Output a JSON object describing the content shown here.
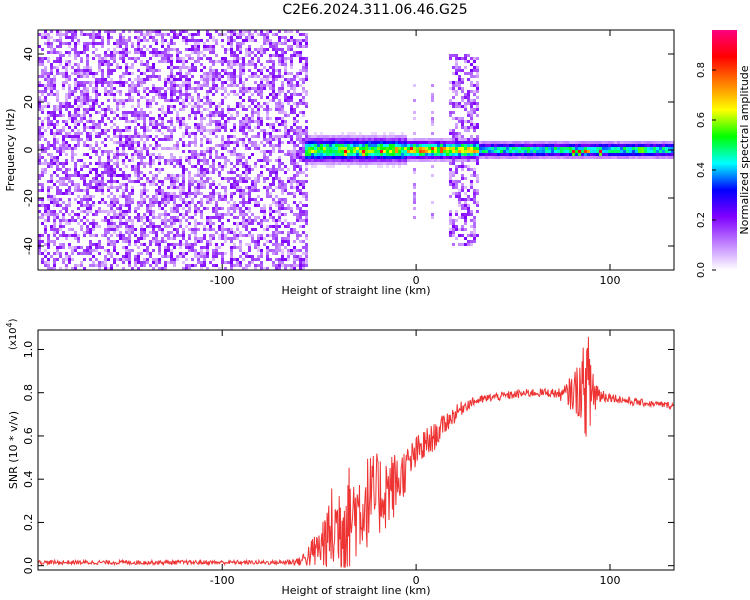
{
  "figure": {
    "title": "C2E6.2024.311.06.46.G25"
  },
  "chart_data": [
    {
      "type": "heatmap",
      "title": "C2E6.2024.311.06.46.G25",
      "xlabel": "Height of straight line (km)",
      "ylabel": "Frequency (Hz)",
      "xlim": [
        -195,
        133
      ],
      "ylim": [
        -50,
        50
      ],
      "x_ticks": [
        -100,
        0,
        100
      ],
      "x_tick_labels": [
        "-100",
        "0",
        "100"
      ],
      "y_ticks": [
        -40,
        -20,
        0,
        20,
        40
      ],
      "y_tick_labels": [
        "-40",
        "-20",
        "0",
        "20",
        "40"
      ],
      "colorbar": {
        "label": "Normalized spectral amplitude",
        "range": [
          0,
          0.96
        ],
        "ticks": [
          0,
          0.2,
          0.4,
          0.6,
          0.8
        ],
        "tick_labels": [
          "0.0",
          "0.2",
          "0.4",
          "0.6",
          "0.8"
        ],
        "colormap": [
          "#ffffff",
          "#c080ff",
          "#8000ff",
          "#0000ff",
          "#00ffff",
          "#00ff00",
          "#ffff00",
          "#ff8000",
          "#ff0000",
          "#ff0080"
        ]
      },
      "regions": [
        {
          "x": [
            -195,
            -55
          ],
          "freq": [
            -50,
            50
          ],
          "amplitude": 0.12,
          "pattern": "noise"
        },
        {
          "x": [
            -58,
            -5
          ],
          "freq": [
            -4,
            4
          ],
          "amplitude": 0.6,
          "pattern": "band"
        },
        {
          "x": [
            -5,
            32
          ],
          "freq": [
            -3,
            3
          ],
          "amplitude": 0.7,
          "pattern": "band"
        },
        {
          "x": [
            -2,
            0
          ],
          "freq": [
            -30,
            30
          ],
          "amplitude": 0.05,
          "pattern": "streak"
        },
        {
          "x": [
            7,
            9
          ],
          "freq": [
            -30,
            30
          ],
          "amplitude": 0.05,
          "pattern": "streak"
        },
        {
          "x": [
            17,
            32
          ],
          "freq": [
            -40,
            40
          ],
          "amplitude": 0.12,
          "pattern": "noise"
        },
        {
          "x": [
            33,
            133
          ],
          "freq": [
            -2.5,
            2.5
          ],
          "amplitude": 0.5,
          "pattern": "band"
        }
      ],
      "peaks": [
        {
          "x": -36,
          "freq": -1,
          "amplitude": 0.95
        },
        {
          "x": -27,
          "freq": -1,
          "amplitude": 0.95
        },
        {
          "x": -18,
          "freq": -0.5,
          "amplitude": 0.9
        },
        {
          "x": -10,
          "freq": 0,
          "amplitude": 0.85
        },
        {
          "x": -2,
          "freq": 0.3,
          "amplitude": 0.96
        },
        {
          "x": 3,
          "freq": -0.8,
          "amplitude": 0.95
        },
        {
          "x": 9,
          "freq": 0.5,
          "amplitude": 0.9
        },
        {
          "x": 13,
          "freq": 0,
          "amplitude": 0.92
        },
        {
          "x": 81,
          "freq": -0.8,
          "amplitude": 0.9
        },
        {
          "x": 84,
          "freq": -0.8,
          "amplitude": 0.9
        },
        {
          "x": 88,
          "freq": -0.5,
          "amplitude": 0.92
        },
        {
          "x": 95,
          "freq": -0.8,
          "amplitude": 0.9
        },
        {
          "x": 116,
          "freq": 0,
          "amplitude": 0.8
        }
      ]
    },
    {
      "type": "line",
      "xlabel": "Height of straight line (km)",
      "ylabel": "SNR (10 * v/v)",
      "y_multiplier": "(x10",
      "y_multiplier_exponent": "4",
      "y_multiplier_close": ")",
      "xlim": [
        -195,
        133
      ],
      "ylim": [
        -0.02,
        1.09
      ],
      "x_ticks": [
        -100,
        0,
        100
      ],
      "x_tick_labels": [
        "-100",
        "0",
        "100"
      ],
      "y_ticks": [
        0,
        0.2,
        0.4,
        0.6,
        0.8,
        1.0
      ],
      "y_tick_labels": [
        "0.0",
        "0.2",
        "0.4",
        "0.6",
        "0.8",
        "1.0"
      ],
      "color": "#ee3333",
      "series": [
        {
          "x": [
            -195,
            -150,
            -100,
            -70,
            -60,
            -50,
            -45,
            -40,
            -35,
            -30,
            -25,
            -20,
            -15,
            -10,
            -5,
            0,
            5,
            10,
            15,
            20,
            25,
            30,
            35,
            40,
            50,
            60,
            70,
            75,
            80,
            85,
            88,
            90,
            92,
            95,
            100,
            110,
            120,
            133
          ],
          "y": [
            0.015,
            0.015,
            0.015,
            0.015,
            0.02,
            0.08,
            0.15,
            0.18,
            0.22,
            0.26,
            0.3,
            0.32,
            0.35,
            0.38,
            0.45,
            0.52,
            0.56,
            0.6,
            0.66,
            0.7,
            0.74,
            0.76,
            0.77,
            0.78,
            0.79,
            0.8,
            0.8,
            0.79,
            0.8,
            0.82,
            0.83,
            0.82,
            0.8,
            0.79,
            0.78,
            0.76,
            0.75,
            0.74
          ],
          "noise": [
            0.01,
            0.01,
            0.01,
            0.01,
            0.02,
            0.1,
            0.2,
            0.25,
            0.25,
            0.22,
            0.22,
            0.2,
            0.18,
            0.15,
            0.1,
            0.08,
            0.08,
            0.06,
            0.05,
            0.04,
            0.03,
            0.02,
            0.02,
            0.02,
            0.02,
            0.02,
            0.02,
            0.03,
            0.08,
            0.15,
            0.25,
            0.25,
            0.12,
            0.04,
            0.02,
            0.02,
            0.015,
            0.015
          ]
        }
      ]
    }
  ]
}
